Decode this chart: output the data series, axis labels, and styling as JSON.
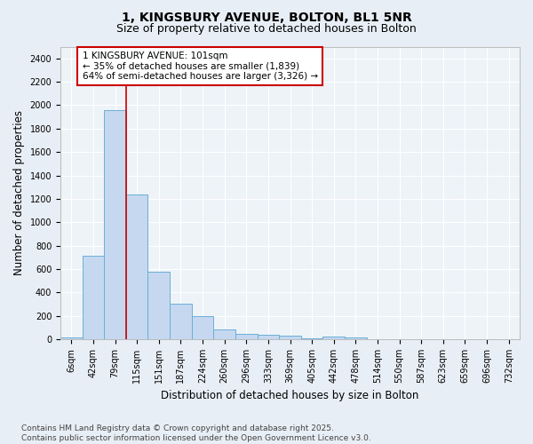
{
  "title_line1": "1, KINGSBURY AVENUE, BOLTON, BL1 5NR",
  "title_line2": "Size of property relative to detached houses in Bolton",
  "xlabel": "Distribution of detached houses by size in Bolton",
  "ylabel": "Number of detached properties",
  "categories": [
    "6sqm",
    "42sqm",
    "79sqm",
    "115sqm",
    "151sqm",
    "187sqm",
    "224sqm",
    "260sqm",
    "296sqm",
    "333sqm",
    "369sqm",
    "405sqm",
    "442sqm",
    "478sqm",
    "514sqm",
    "550sqm",
    "587sqm",
    "623sqm",
    "659sqm",
    "696sqm",
    "732sqm"
  ],
  "values": [
    15,
    710,
    1960,
    1235,
    575,
    305,
    200,
    85,
    45,
    35,
    30,
    5,
    20,
    15,
    0,
    0,
    0,
    0,
    0,
    0,
    0
  ],
  "bar_color": "#c5d8f0",
  "bar_edge_color": "#6baed6",
  "vline_x": 2.5,
  "vline_color": "#cc0000",
  "annotation_text": "1 KINGSBURY AVENUE: 101sqm\n← 35% of detached houses are smaller (1,839)\n64% of semi-detached houses are larger (3,326) →",
  "annotation_box_color": "white",
  "annotation_box_edge": "#cc0000",
  "ylim": [
    0,
    2500
  ],
  "yticks": [
    0,
    200,
    400,
    600,
    800,
    1000,
    1200,
    1400,
    1600,
    1800,
    2000,
    2200,
    2400
  ],
  "footer": "Contains HM Land Registry data © Crown copyright and database right 2025.\nContains public sector information licensed under the Open Government Licence v3.0.",
  "bg_color": "#e8eef5",
  "plot_bg_color": "#eef3f8",
  "grid_color": "#ffffff",
  "title_fontsize": 10,
  "subtitle_fontsize": 9,
  "axis_label_fontsize": 8.5,
  "tick_fontsize": 7,
  "annotation_fontsize": 7.5,
  "footer_fontsize": 6.5
}
